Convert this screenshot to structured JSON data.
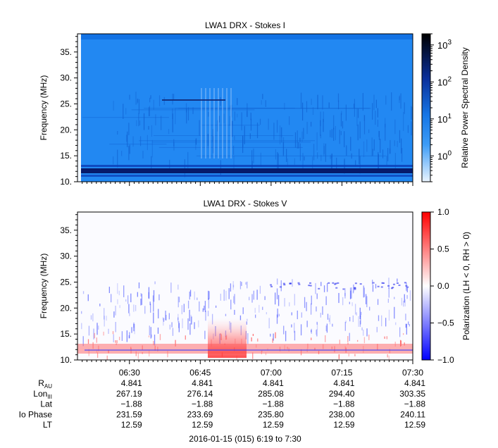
{
  "chart_data": [
    {
      "type": "heatmap",
      "title": "LWA1 DRX - Stokes I",
      "xlabel": "",
      "ylabel": "Frequency (MHz)",
      "ylim": [
        10,
        38.5
      ],
      "yticks": [
        10,
        15,
        20,
        25,
        30,
        35
      ],
      "ytick_labels": [
        "10.",
        "15.",
        "20.",
        "25.",
        "30.",
        "35."
      ],
      "colorbar": {
        "label": "Relative Power Spectral Density",
        "scale": "log",
        "range": [
          0.2,
          2000
        ],
        "ticks": [
          1,
          10,
          100,
          1000
        ],
        "tick_labels": [
          "10",
          "10",
          "10",
          "10"
        ],
        "tick_exponents": [
          "0",
          "1",
          "2",
          "3"
        ],
        "colors": [
          "#e6f2ff",
          "#1e90ff",
          "#0a2fa0",
          "#000000"
        ]
      },
      "features": [
        {
          "name": "strong band",
          "freq": 11.8
        },
        {
          "name": "band",
          "freq": 12.6
        },
        {
          "name": "band",
          "freq": 25.8
        }
      ]
    },
    {
      "type": "heatmap",
      "title": "LWA1 DRX - Stokes V",
      "xlabel": "",
      "ylabel": "Frequency (MHz)",
      "ylim": [
        10,
        38.5
      ],
      "yticks": [
        10,
        15,
        20,
        25,
        30,
        35
      ],
      "ytick_labels": [
        "10.",
        "15.",
        "20.",
        "25.",
        "30.",
        "35."
      ],
      "colorbar": {
        "label": "Polarization (LH < 0, RH > 0)",
        "scale": "linear",
        "range": [
          -1.0,
          1.0
        ],
        "ticks": [
          1.0,
          0.5,
          0.0,
          -0.5,
          -1.0
        ],
        "tick_labels": [
          "1.0",
          "0.5",
          "0.0",
          "−0.5",
          "−1.0"
        ],
        "colors": [
          "#0000ff",
          "#ffffff",
          "#ff0000"
        ]
      }
    }
  ],
  "time_axis": {
    "labels": [
      "06:30",
      "06:45",
      "07:00",
      "07:15",
      "07:30"
    ],
    "minutes": [
      30,
      45,
      60,
      75,
      90
    ],
    "range_minutes": [
      19,
      90
    ]
  },
  "ephemeris": {
    "rows": [
      {
        "label": "R",
        "sub": "AU",
        "values": [
          "4.841",
          "4.841",
          "4.841",
          "4.841",
          "4.841"
        ]
      },
      {
        "label": "Lon",
        "sub": "III",
        "values": [
          "267.19",
          "276.14",
          "285.08",
          "294.40",
          "303.35"
        ]
      },
      {
        "label": "Lat",
        "sub": "",
        "values": [
          "−1.88",
          "−1.88",
          "−1.88",
          "−1.88",
          "−1.88"
        ]
      },
      {
        "label": "Io Phase",
        "sub": "",
        "values": [
          "231.59",
          "233.69",
          "235.80",
          "238.00",
          "240.11"
        ]
      },
      {
        "label": "LT",
        "sub": "",
        "values": [
          "12.59",
          "12.59",
          "12.59",
          "12.59",
          "12.59"
        ]
      }
    ]
  },
  "footer": "2016-01-15 (015) 6:19 to 7:30"
}
